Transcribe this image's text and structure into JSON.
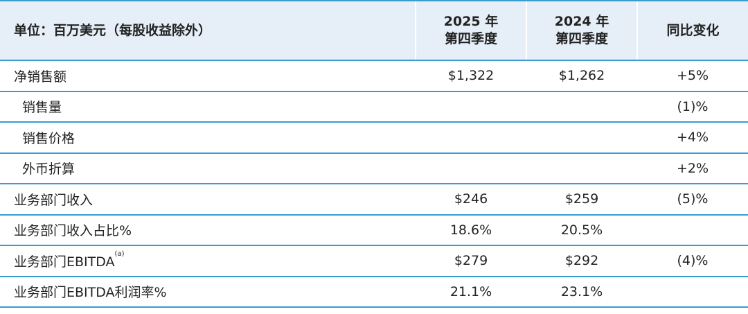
{
  "header": {
    "label": "单位：百万美元（每股收益除外）",
    "col1": [
      "2025 年",
      "第四季度"
    ],
    "col2": [
      "2024 年",
      "第四季度"
    ],
    "col3": "同比变化"
  },
  "rows": [
    {
      "label": "净销售额",
      "v1": "$1,322",
      "v2": "$1,262",
      "v3": "+5%"
    },
    {
      "label": "销售量",
      "v1": "",
      "v2": "",
      "v3": "(1)%"
    },
    {
      "label": "销售价格",
      "v1": "",
      "v2": "",
      "v3": "+4%"
    },
    {
      "label": "外币折算",
      "v1": "",
      "v2": "",
      "v3": "+2%"
    },
    {
      "label": "业务部门收入",
      "v1": "$246",
      "v2": "$259",
      "v3": "(5)%"
    },
    {
      "label": "业务部门收入占比%",
      "v1": "18.6%",
      "v2": "20.5%",
      "v3": ""
    },
    {
      "label": "业务部门EBITDA",
      "sup": "(a)",
      "v1": "$279",
      "v2": "$292",
      "v3": "(4)%"
    },
    {
      "label": "业务部门EBITDA利润率%",
      "v1": "21.1%",
      "v2": "23.1%",
      "v3": ""
    }
  ],
  "colors": {
    "rule": "#3a9bd0",
    "header_bg": "#e6eff8"
  }
}
